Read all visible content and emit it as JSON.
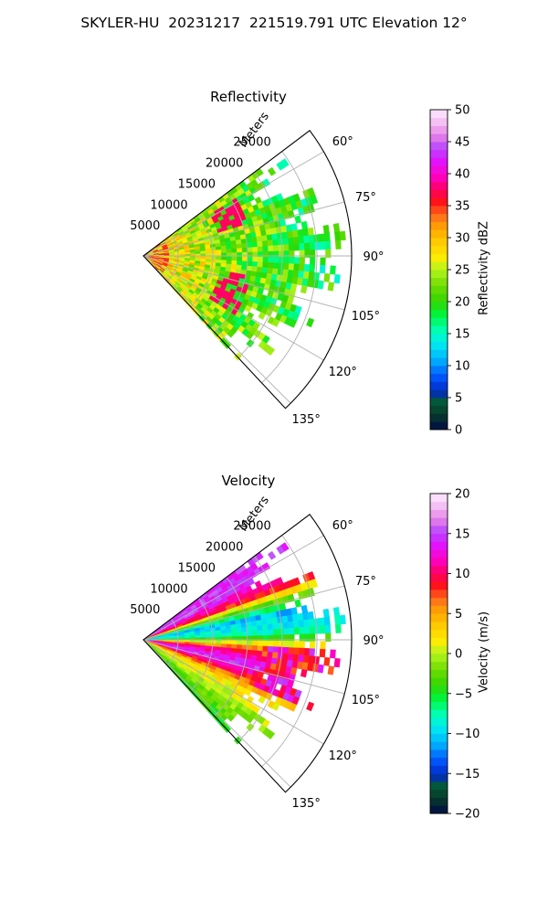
{
  "suptitle": "SKYLER-HU  20231217  221519.791 UTC Elevation 12°",
  "chart_data": [
    {
      "type": "heatmap",
      "projection": "polar",
      "title": "Reflectivity",
      "radial_label": "Meters",
      "radial_ticks": [
        "5000",
        "10000",
        "15000",
        "20000",
        "25000"
      ],
      "radial_tick_values": [
        5000,
        10000,
        15000,
        20000,
        25000
      ],
      "radial_max": 30000,
      "azimuth_range_deg": [
        53,
        137
      ],
      "azimuth_ticks": [
        "60°",
        "75°",
        "90°",
        "105°",
        "120°",
        "135°"
      ],
      "azimuth_tick_values": [
        60,
        75,
        90,
        105,
        120,
        135
      ],
      "grid": true,
      "colorbar": {
        "label": "Reflectivity dBZ",
        "range": [
          0,
          50
        ],
        "ticks": [
          "0",
          "5",
          "10",
          "15",
          "20",
          "25",
          "30",
          "35",
          "40",
          "45",
          "50"
        ],
        "tick_values": [
          0,
          5,
          10,
          15,
          20,
          25,
          30,
          35,
          40,
          45,
          50
        ]
      }
    },
    {
      "type": "heatmap",
      "projection": "polar",
      "title": "Velocity",
      "radial_label": "Meters",
      "radial_ticks": [
        "5000",
        "10000",
        "15000",
        "20000",
        "25000"
      ],
      "radial_tick_values": [
        5000,
        10000,
        15000,
        20000,
        25000
      ],
      "radial_max": 30000,
      "azimuth_range_deg": [
        53,
        137
      ],
      "azimuth_ticks": [
        "60°",
        "75°",
        "90°",
        "105°",
        "120°",
        "135°"
      ],
      "azimuth_tick_values": [
        60,
        75,
        90,
        105,
        120,
        135
      ],
      "grid": true,
      "colorbar": {
        "label": "Velocity (m/s)",
        "range": [
          -20,
          20
        ],
        "ticks": [
          "−20",
          "−15",
          "−10",
          "−5",
          "0",
          "5",
          "10",
          "15",
          "20"
        ],
        "tick_values": [
          -20,
          -15,
          -10,
          -5,
          0,
          5,
          10,
          15,
          20
        ]
      }
    }
  ],
  "colors": {
    "grid": "#b0b0b0",
    "axis": "#000000"
  }
}
